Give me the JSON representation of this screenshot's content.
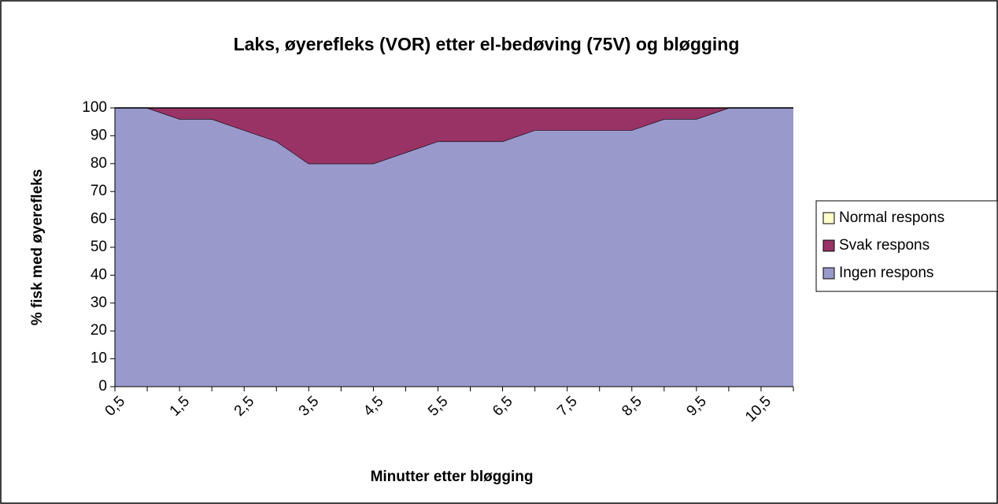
{
  "chart_data": {
    "type": "area",
    "stacked": true,
    "title": "Laks, øyerefleks (VOR) etter el-bedøving (75V) og bløgging",
    "x_label": "Minutter etter bløgging",
    "y_label": "% fisk med øyerefleks",
    "categories": [
      "0,5",
      null,
      "1,5",
      null,
      "2,5",
      null,
      "3,5",
      null,
      "4,5",
      null,
      "5,5",
      null,
      "6,5",
      null,
      "7,5",
      null,
      "8,5",
      null,
      "9,5",
      null,
      "10,5",
      null
    ],
    "series": [
      {
        "name": "Ingen respons",
        "color": "#9999cc",
        "values": [
          100,
          100,
          96,
          96,
          92,
          88,
          80,
          80,
          80,
          84,
          88,
          88,
          88,
          92,
          92,
          92,
          92,
          96,
          96,
          100,
          100,
          100
        ]
      },
      {
        "name": "Svak respons",
        "color": "#993366",
        "values": [
          0,
          0,
          4,
          4,
          8,
          12,
          20,
          20,
          20,
          16,
          12,
          12,
          12,
          8,
          8,
          8,
          8,
          4,
          4,
          0,
          0,
          0
        ]
      },
      {
        "name": "Normal respons",
        "color": "#ffffcc",
        "values": [
          0,
          0,
          0,
          0,
          0,
          0,
          0,
          0,
          0,
          0,
          0,
          0,
          0,
          0,
          0,
          0,
          0,
          0,
          0,
          0,
          0,
          0
        ]
      }
    ],
    "ylim": [
      0,
      100
    ],
    "yticks": [
      0,
      10,
      20,
      30,
      40,
      50,
      60,
      70,
      80,
      90,
      100
    ],
    "legend": "right"
  }
}
